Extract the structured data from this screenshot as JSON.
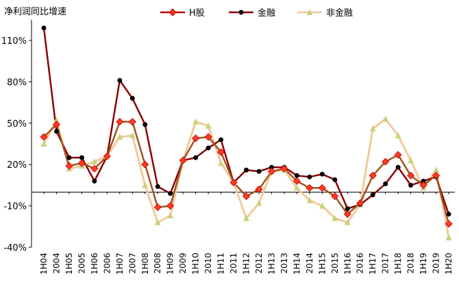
{
  "chart_data": {
    "type": "line",
    "title": "",
    "ylabel": "净利润同比增速",
    "xlabel": "",
    "ylim": [
      -40,
      120
    ],
    "yticks": [
      -40,
      -10,
      20,
      50,
      80,
      110
    ],
    "ytick_labels": [
      "-40%",
      "-10%",
      "20%",
      "50%",
      "80%",
      "110%"
    ],
    "legend_position": "top",
    "grid": false,
    "categories": [
      "1H04",
      "2004",
      "1H05",
      "2005",
      "1H06",
      "2006",
      "1H07",
      "2007",
      "1H08",
      "2008",
      "1H09",
      "2009",
      "1H10",
      "2010",
      "1H11",
      "2011",
      "1H12",
      "2012",
      "1H13",
      "2013",
      "1H14",
      "2014",
      "1H15",
      "2015",
      "1H16",
      "2016",
      "1H17",
      "2017",
      "1H18",
      "2018",
      "1H19",
      "2019",
      "1H20"
    ],
    "series": [
      {
        "name": "H股",
        "color": "#c00000",
        "marker": "diamond",
        "marker_fill": "#ff3b1f",
        "line_color": "#a0521e",
        "values": [
          40,
          49,
          19,
          21,
          17,
          26,
          51,
          51,
          20,
          -11,
          -10,
          23,
          39,
          40,
          29,
          7,
          -3,
          2,
          15,
          17,
          8,
          3,
          3,
          -3,
          -16,
          -8,
          12,
          22,
          27,
          12,
          5,
          12,
          -23
        ]
      },
      {
        "name": "金融",
        "color": "#8b0000",
        "marker": "circle",
        "marker_fill": "#000000",
        "values": [
          119,
          44,
          25,
          25,
          8,
          26,
          81,
          68,
          49,
          4,
          -1,
          23,
          25,
          32,
          38,
          7,
          16,
          15,
          18,
          18,
          12,
          11,
          13,
          9,
          -12,
          -9,
          -2,
          6,
          18,
          5,
          8,
          11,
          -16
        ]
      },
      {
        "name": "非金融",
        "color": "#f3c99a",
        "marker": "triangle",
        "marker_fill": "#c9d27a",
        "values": [
          35,
          52,
          17,
          19,
          22,
          26,
          40,
          41,
          5,
          -22,
          -17,
          23,
          51,
          48,
          21,
          7,
          -19,
          -8,
          15,
          16,
          3,
          -6,
          -10,
          -19,
          -22,
          -9,
          46,
          53,
          41,
          23,
          3,
          16,
          -33
        ]
      }
    ]
  }
}
